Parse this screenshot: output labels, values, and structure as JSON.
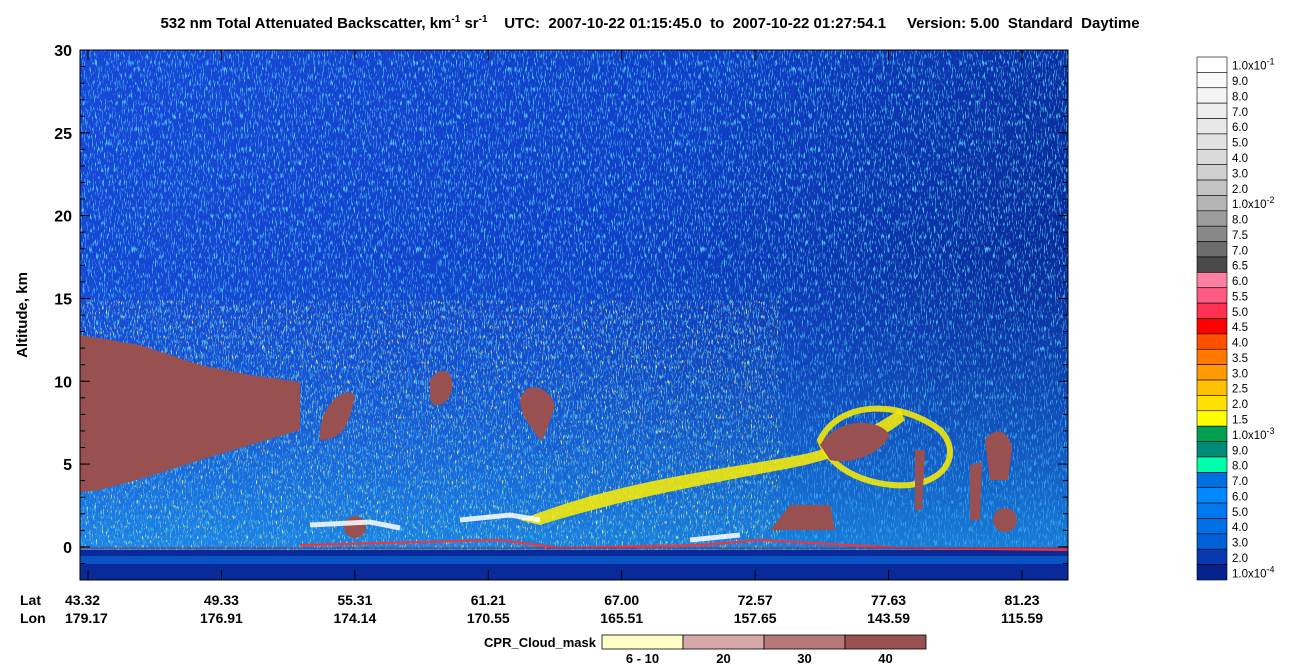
{
  "chart_data": {
    "type": "heatmap",
    "title": {
      "main": "532 nm Total Attenuated Backscatter, km",
      "exp1": "-1",
      "unit2": " sr",
      "exp2": "-1",
      "time": "UTC:  2007-10-22 01:15:45.0  to  2007-10-22 01:27:54.1",
      "version": "Version: 5.00  Standard  Daytime"
    },
    "y_label": "Altitude, km",
    "ylim": [
      -2,
      30
    ],
    "yticks": [
      0,
      5,
      10,
      15,
      20,
      25,
      30
    ],
    "x_rows": [
      {
        "name": "Lat",
        "labels": [
          "43.32",
          "49.33",
          "55.31",
          "61.21",
          "67.00",
          "72.57",
          "77.63",
          "81.23"
        ]
      },
      {
        "name": "Lon",
        "labels": [
          "179.17",
          "176.91",
          "174.14",
          "170.55",
          "165.51",
          "157.65",
          "143.59",
          "115.59"
        ]
      }
    ],
    "colorbar": [
      {
        "label": "1.0x10",
        "exp": "-1",
        "color": "#ffffff"
      },
      {
        "label": "9.0",
        "color": "#fafafa"
      },
      {
        "label": "8.0",
        "color": "#f4f4f4"
      },
      {
        "label": "7.0",
        "color": "#eeeeee"
      },
      {
        "label": "6.0",
        "color": "#e8e8e8"
      },
      {
        "label": "5.0",
        "color": "#e2e2e2"
      },
      {
        "label": "4.0",
        "color": "#dadada"
      },
      {
        "label": "3.0",
        "color": "#d0d0d0"
      },
      {
        "label": "2.0",
        "color": "#c4c4c4"
      },
      {
        "label": "1.0x10",
        "exp": "-2",
        "color": "#b4b4b4"
      },
      {
        "label": "8.0",
        "color": "#9c9c9c"
      },
      {
        "label": "7.5",
        "color": "#888888"
      },
      {
        "label": "7.0",
        "color": "#6c6c6c"
      },
      {
        "label": "6.5",
        "color": "#4a4a4a"
      },
      {
        "label": "6.0",
        "color": "#ff7fa0"
      },
      {
        "label": "5.5",
        "color": "#ff5a80"
      },
      {
        "label": "5.0",
        "color": "#ff3050"
      },
      {
        "label": "4.5",
        "color": "#ff0000"
      },
      {
        "label": "4.0",
        "color": "#ff5000"
      },
      {
        "label": "3.5",
        "color": "#ff7800"
      },
      {
        "label": "3.0",
        "color": "#ff9a00"
      },
      {
        "label": "2.5",
        "color": "#ffc000"
      },
      {
        "label": "2.0",
        "color": "#ffe000"
      },
      {
        "label": "1.5",
        "color": "#ffff00"
      },
      {
        "label": "1.0x10",
        "exp": "-3",
        "color": "#00a050"
      },
      {
        "label": "9.0",
        "color": "#008a78"
      },
      {
        "label": "8.0",
        "color": "#00ffaa"
      },
      {
        "label": "7.0",
        "color": "#0070e0"
      },
      {
        "label": "6.0",
        "color": "#0088ff"
      },
      {
        "label": "5.0",
        "color": "#0078f0"
      },
      {
        "label": "4.0",
        "color": "#0070e8"
      },
      {
        "label": "3.0",
        "color": "#0060d8"
      },
      {
        "label": "2.0",
        "color": "#0838b0"
      },
      {
        "label": "1.0x10",
        "exp": "-4",
        "color": "#06228c"
      }
    ],
    "cloud_mask": {
      "title": "CPR_Cloud_mask",
      "categories": [
        "6 - 10",
        "20",
        "30",
        "40"
      ],
      "colors": [
        "#ffffc8",
        "#d6a8a8",
        "#b87878",
        "#985050"
      ]
    }
  }
}
